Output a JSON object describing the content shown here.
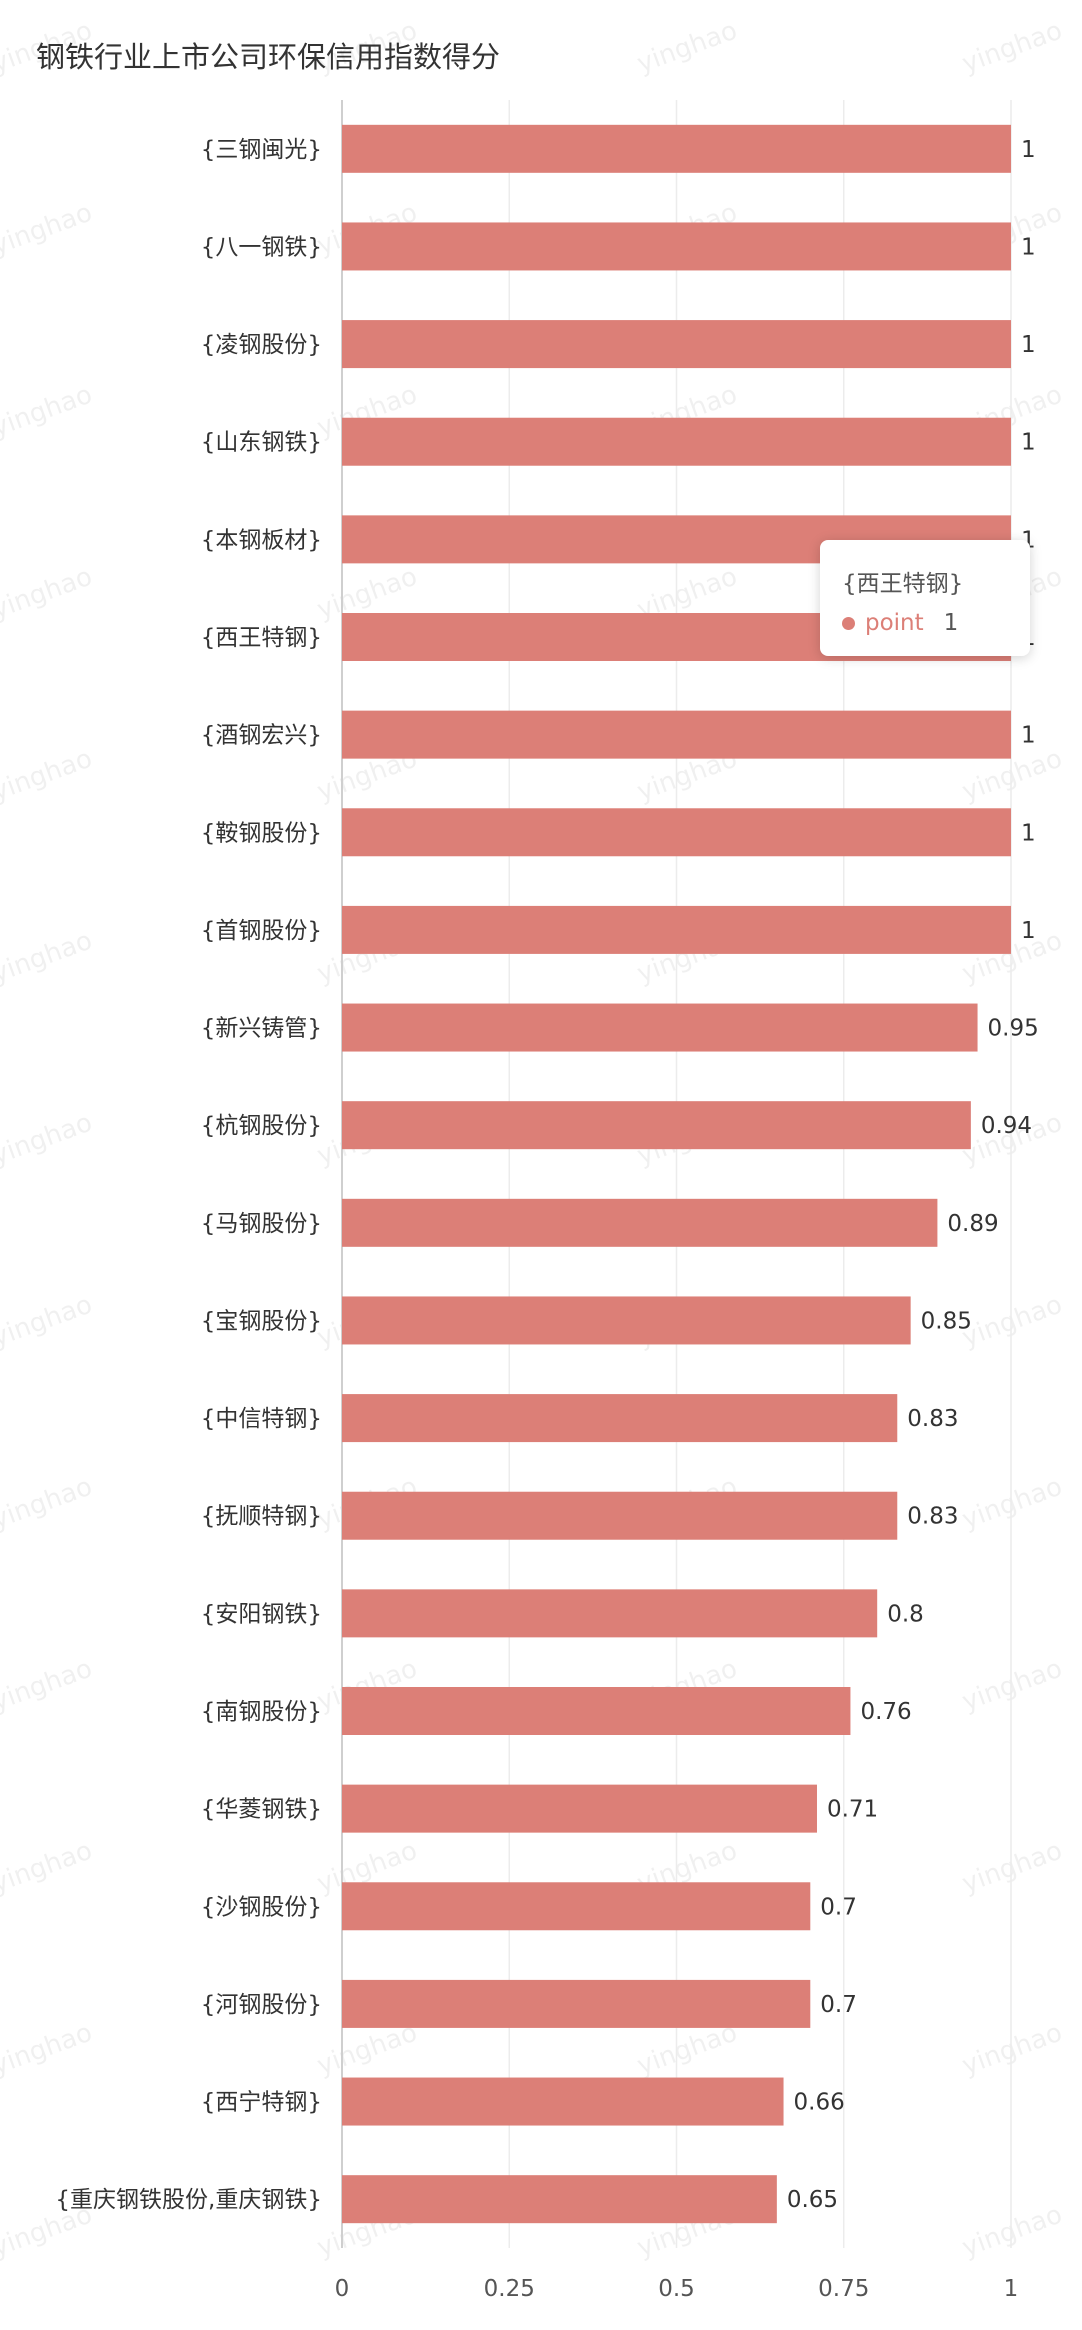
{
  "chart_data": {
    "type": "bar",
    "orientation": "horizontal",
    "title": "钢铁行业上市公司环保信用指数得分",
    "xlim": [
      0,
      1
    ],
    "x_ticks": [
      "0",
      "0.25",
      "0.5",
      "0.75",
      "1"
    ],
    "grid": true,
    "bar_color": "#dc7f77",
    "categories": [
      "{三钢闽光}",
      "{八一钢铁}",
      "{凌钢股份}",
      "{山东钢铁}",
      "{本钢板材}",
      "{西王特钢}",
      "{酒钢宏兴}",
      "{鞍钢股份}",
      "{首钢股份}",
      "{新兴铸管}",
      "{杭钢股份}",
      "{马钢股份}",
      "{宝钢股份}",
      "{中信特钢}",
      "{抚顺特钢}",
      "{安阳钢铁}",
      "{南钢股份}",
      "{华菱钢铁}",
      "{沙钢股份}",
      "{河钢股份}",
      "{西宁特钢}",
      "{重庆钢铁股份,重庆钢铁}"
    ],
    "values": [
      1,
      1,
      1,
      1,
      1,
      1,
      1,
      1,
      1,
      0.95,
      0.94,
      0.89,
      0.85,
      0.83,
      0.83,
      0.8,
      0.76,
      0.71,
      0.7,
      0.7,
      0.66,
      0.65
    ],
    "tooltip": {
      "category": "{西王特钢}",
      "series_name": "point",
      "value": "1"
    }
  },
  "watermark": "yinghao"
}
